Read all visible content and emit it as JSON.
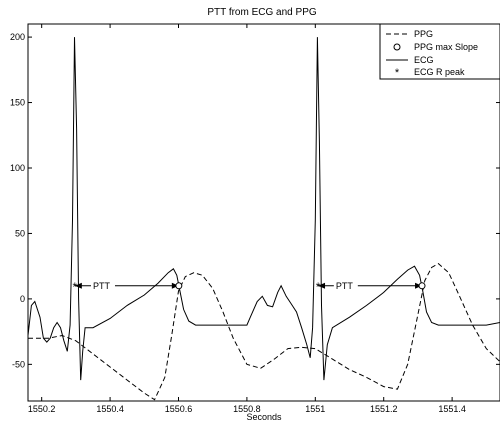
{
  "chart_data": {
    "type": "line",
    "title": "PTT from ECG and PPG",
    "xlabel": "Seconds",
    "ylabel": "",
    "xlim": [
      1550.16,
      1551.54
    ],
    "ylim": [
      -78,
      210
    ],
    "xticks": [
      1550.2,
      1550.4,
      1550.6,
      1550.8,
      1551,
      1551.2,
      1551.4
    ],
    "xtick_labels": [
      "1550.2",
      "1550.4",
      "1550.6",
      "1550.8",
      "1551",
      "1551.2",
      "1551.4"
    ],
    "yticks": [
      -50,
      0,
      50,
      100,
      150,
      200
    ],
    "ytick_labels": [
      "-50",
      "0",
      "50",
      "100",
      "150",
      "200"
    ],
    "grid": false,
    "legend_position": "top-right",
    "series": [
      {
        "name": "PPG",
        "style": "dashed",
        "x": [
          1550.16,
          1550.22,
          1550.26,
          1550.3,
          1550.35,
          1550.4,
          1550.45,
          1550.5,
          1550.53,
          1550.56,
          1550.58,
          1550.6,
          1550.62,
          1550.645,
          1550.67,
          1550.7,
          1550.73,
          1550.76,
          1550.8,
          1550.84,
          1550.88,
          1550.92,
          1550.96,
          1551.0,
          1551.05,
          1551.1,
          1551.15,
          1551.2,
          1551.24,
          1551.27,
          1551.3,
          1551.32,
          1551.34,
          1551.36,
          1551.39,
          1551.42,
          1551.46,
          1551.5,
          1551.54
        ],
        "y": [
          -30,
          -30,
          -28,
          -32,
          -42,
          -52,
          -62,
          -72,
          -77,
          -60,
          -28,
          6,
          17,
          20,
          18,
          8,
          -10,
          -30,
          -50,
          -53,
          -46,
          -38,
          -37,
          -38,
          -46,
          -54,
          -60,
          -67,
          -69,
          -50,
          -12,
          14,
          24,
          27,
          20,
          3,
          -20,
          -38,
          -48
        ]
      },
      {
        "name": "PPG max Slope",
        "style": "marker-circle",
        "x": [
          1550.601,
          1551.312
        ],
        "y": [
          10,
          10
        ]
      },
      {
        "name": "ECG",
        "style": "solid",
        "x": [
          1550.16,
          1550.17,
          1550.18,
          1550.195,
          1550.205,
          1550.215,
          1550.225,
          1550.235,
          1550.245,
          1550.255,
          1550.265,
          1550.275,
          1550.283,
          1550.29,
          1550.296,
          1550.302,
          1550.308,
          1550.314,
          1550.32,
          1550.327,
          1550.335,
          1550.35,
          1550.4,
          1550.45,
          1550.5,
          1550.54,
          1550.57,
          1550.585,
          1550.595,
          1550.605,
          1550.615,
          1550.63,
          1550.65,
          1550.67,
          1550.7,
          1550.75,
          1550.8,
          1550.81,
          1550.83,
          1550.845,
          1550.86,
          1550.875,
          1550.89,
          1550.9,
          1550.915,
          1550.93,
          1550.945,
          1550.96,
          1550.975,
          1550.985,
          1550.992,
          1551.0,
          1551.006,
          1551.012,
          1551.018,
          1551.025,
          1551.035,
          1551.05,
          1551.1,
          1551.15,
          1551.2,
          1551.24,
          1551.27,
          1551.29,
          1551.305,
          1551.315,
          1551.325,
          1551.34,
          1551.36,
          1551.4,
          1551.45,
          1551.5,
          1551.54
        ],
        "y": [
          -28,
          -5,
          -2,
          -14,
          -30,
          -33,
          -30,
          -22,
          -18,
          -22,
          -32,
          -40,
          -20,
          60,
          200,
          130,
          0,
          -62,
          -40,
          -22,
          -22,
          -22,
          -15,
          -5,
          3,
          12,
          20,
          23,
          18,
          5,
          -8,
          -17,
          -20,
          -20,
          -20,
          -20,
          -20,
          -14,
          -2,
          2,
          -5,
          -6,
          5,
          10,
          2,
          -4,
          -10,
          -22,
          -35,
          -45,
          -22,
          60,
          200,
          120,
          -5,
          -62,
          -35,
          -22,
          -14,
          -5,
          5,
          15,
          22,
          25,
          18,
          5,
          -10,
          -18,
          -20,
          -20,
          -20,
          -20,
          -18
        ]
      },
      {
        "name": "ECG R peak",
        "style": "marker-star",
        "x": [
          1550.297,
          1551.008
        ],
        "y": [
          10,
          10
        ]
      }
    ],
    "annotations": [
      {
        "text": "PTT",
        "x_start": 1550.297,
        "x_end": 1550.601,
        "y": 10,
        "text_x": 1550.35
      },
      {
        "text": "PTT",
        "x_start": 1551.008,
        "x_end": 1551.312,
        "y": 10,
        "text_x": 1551.06
      }
    ]
  }
}
